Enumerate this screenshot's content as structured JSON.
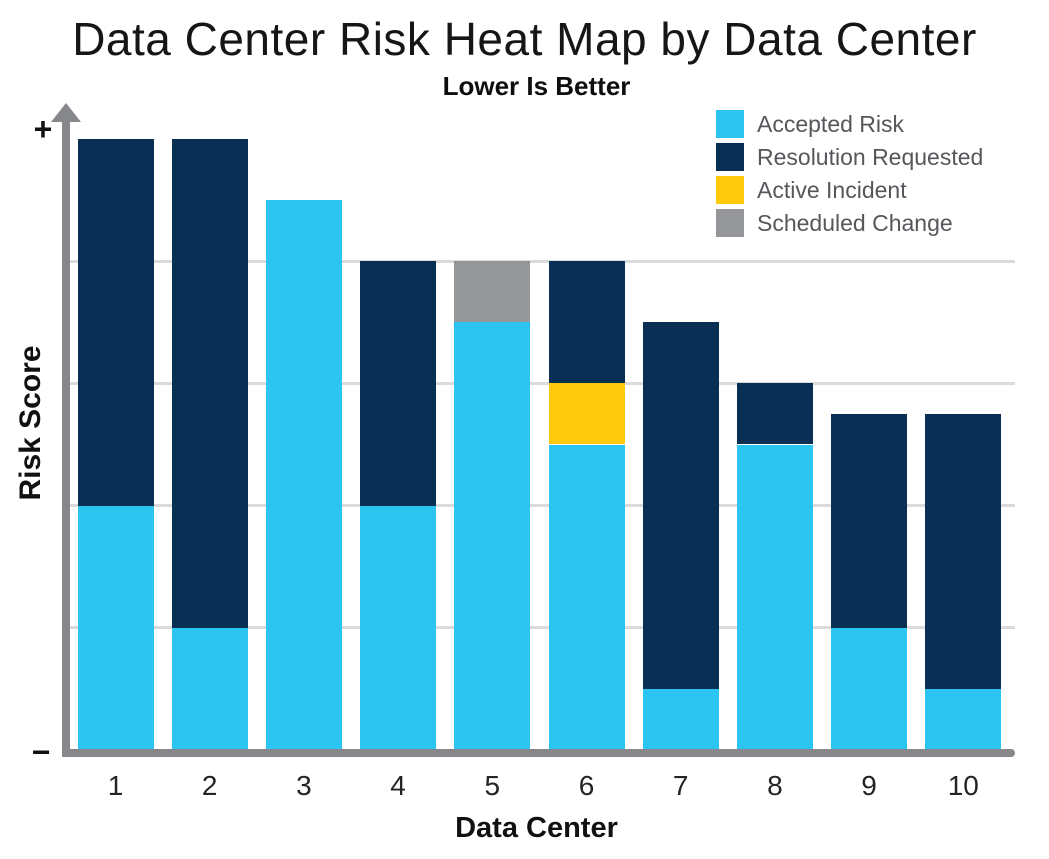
{
  "chart_data": {
    "type": "bar",
    "stacked": true,
    "title": "Data Center Risk Heat Map by Data Center",
    "subtitle": "Lower Is Better",
    "xlabel": "Data Center",
    "ylabel": "Risk Score",
    "y_axis_top_label": "+",
    "y_axis_bottom_label": "−",
    "categories": [
      "1",
      "2",
      "3",
      "4",
      "5",
      "6",
      "7",
      "8",
      "9",
      "10"
    ],
    "ylim": [
      0,
      5
    ],
    "gridlines": [
      1,
      2,
      3,
      4
    ],
    "grid_on": true,
    "legend_position": "top-right",
    "series": [
      {
        "name": "Accepted Risk",
        "color": "#2CC4F1",
        "values": [
          2,
          1,
          4.5,
          2,
          3.5,
          2.5,
          0.5,
          2.5,
          1,
          0.5
        ]
      },
      {
        "name": "Active Incident",
        "color": "#FEC90B",
        "values": [
          0,
          0,
          0,
          0,
          0,
          0.5,
          0,
          0,
          0,
          0
        ]
      },
      {
        "name": "Resolution Requested",
        "color": "#0A2F54",
        "values": [
          3,
          4,
          0,
          2,
          0,
          1,
          3,
          0.5,
          1.75,
          2.25
        ]
      },
      {
        "name": "Scheduled Change",
        "color": "#95969A",
        "values": [
          0,
          0,
          0,
          0,
          0.5,
          0,
          0,
          0,
          0,
          0
        ]
      }
    ],
    "legend_order": [
      "Accepted Risk",
      "Resolution Requested",
      "Active Incident",
      "Scheduled Change"
    ],
    "colors": {
      "axis": "#85878A",
      "gridline": "#DBDBDC",
      "legend_text": "#55575B"
    }
  }
}
